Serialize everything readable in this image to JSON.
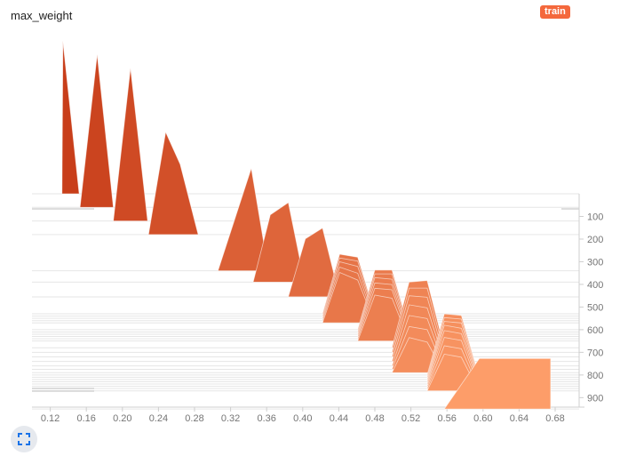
{
  "header": {
    "title": "max_weight",
    "run_label": "train"
  },
  "controls": {
    "fit_icon": "fit-to-screen-icon"
  },
  "colors": {
    "early": "#c83e1a",
    "late": "#ffa06c",
    "badge": "#f4683c",
    "grid": "#e6e6e6"
  },
  "chart_data": {
    "type": "histogram-offset",
    "title": "max_weight",
    "run": "train",
    "xlim": [
      0.1,
      0.69
    ],
    "x_ticks": [
      "0.12",
      "0.16",
      "0.20",
      "0.24",
      "0.28",
      "0.32",
      "0.36",
      "0.40",
      "0.44",
      "0.48",
      "0.52",
      "0.56",
      "0.60",
      "0.64",
      "0.68"
    ],
    "ylim": [
      0,
      985
    ],
    "y_ticks": [
      "100",
      "200",
      "300",
      "400",
      "500",
      "600",
      "700",
      "800",
      "900"
    ],
    "histograms": [
      {
        "step": 0,
        "x": [
          0.133,
          0.134,
          0.152
        ],
        "h": [
          0,
          1.0,
          0
        ]
      },
      {
        "step": 60,
        "x": [
          0.153,
          0.172,
          0.19
        ],
        "h": [
          0,
          1.0,
          0
        ]
      },
      {
        "step": 120,
        "x": [
          0.19,
          0.209,
          0.228
        ],
        "h": [
          0,
          1.0,
          0
        ]
      },
      {
        "step": 180,
        "x": [
          0.229,
          0.248,
          0.264,
          0.284
        ],
        "h": [
          0,
          0.67,
          0.46,
          0
        ]
      },
      {
        "step": 340,
        "x": [
          0.306,
          0.343,
          0.362
        ],
        "h": [
          0,
          0.67,
          0
        ]
      },
      {
        "step": 390,
        "x": [
          0.345,
          0.364,
          0.384,
          0.402
        ],
        "h": [
          0,
          0.44,
          0.52,
          0
        ]
      },
      {
        "step": 455,
        "x": [
          0.384,
          0.403,
          0.422,
          0.441
        ],
        "h": [
          0,
          0.38,
          0.45,
          0
        ]
      },
      {
        "step": 530,
        "x": [
          0.422,
          0.441,
          0.461,
          0.48
        ],
        "h": [
          0,
          0.39,
          0.37,
          0
        ]
      },
      {
        "step": 540,
        "x": [
          0.422,
          0.441,
          0.461,
          0.48
        ],
        "h": [
          0,
          0.38,
          0.36,
          0
        ]
      },
      {
        "step": 550,
        "x": [
          0.422,
          0.441,
          0.461,
          0.48
        ],
        "h": [
          0,
          0.37,
          0.34,
          0
        ]
      },
      {
        "step": 560,
        "x": [
          0.422,
          0.441,
          0.461,
          0.48
        ],
        "h": [
          0,
          0.35,
          0.31,
          0
        ]
      },
      {
        "step": 570,
        "x": [
          0.422,
          0.441,
          0.461,
          0.48
        ],
        "h": [
          0,
          0.33,
          0.28,
          0
        ]
      },
      {
        "step": 600,
        "x": [
          0.461,
          0.48,
          0.499,
          0.518
        ],
        "h": [
          0,
          0.39,
          0.39,
          0
        ]
      },
      {
        "step": 610,
        "x": [
          0.461,
          0.48,
          0.499,
          0.518
        ],
        "h": [
          0,
          0.38,
          0.38,
          0
        ]
      },
      {
        "step": 620,
        "x": [
          0.461,
          0.48,
          0.499,
          0.518
        ],
        "h": [
          0,
          0.37,
          0.36,
          0
        ]
      },
      {
        "step": 630,
        "x": [
          0.461,
          0.48,
          0.499,
          0.518
        ],
        "h": [
          0,
          0.35,
          0.34,
          0
        ]
      },
      {
        "step": 640,
        "x": [
          0.461,
          0.48,
          0.499,
          0.518
        ],
        "h": [
          0,
          0.33,
          0.32,
          0
        ]
      },
      {
        "step": 650,
        "x": [
          0.461,
          0.48,
          0.499,
          0.518
        ],
        "h": [
          0,
          0.3,
          0.28,
          0
        ]
      },
      {
        "step": 680,
        "x": [
          0.499,
          0.518,
          0.538,
          0.557
        ],
        "h": [
          0,
          0.43,
          0.44,
          0
        ]
      },
      {
        "step": 700,
        "x": [
          0.499,
          0.518,
          0.538,
          0.557
        ],
        "h": [
          0,
          0.42,
          0.42,
          0
        ]
      },
      {
        "step": 720,
        "x": [
          0.499,
          0.518,
          0.538,
          0.557
        ],
        "h": [
          0,
          0.4,
          0.39,
          0
        ]
      },
      {
        "step": 740,
        "x": [
          0.499,
          0.518,
          0.538,
          0.557
        ],
        "h": [
          0,
          0.37,
          0.35,
          0
        ]
      },
      {
        "step": 760,
        "x": [
          0.499,
          0.518,
          0.538,
          0.557
        ],
        "h": [
          0,
          0.33,
          0.31,
          0
        ]
      },
      {
        "step": 775,
        "x": [
          0.499,
          0.518,
          0.538,
          0.557
        ],
        "h": [
          0,
          0.28,
          0.26,
          0
        ]
      },
      {
        "step": 790,
        "x": [
          0.499,
          0.518,
          0.538,
          0.557
        ],
        "h": [
          0,
          0.23,
          0.2,
          0
        ]
      },
      {
        "step": 800,
        "x": [
          0.538,
          0.557,
          0.576,
          0.595
        ],
        "h": [
          0,
          0.4,
          0.39,
          0
        ]
      },
      {
        "step": 810,
        "x": [
          0.538,
          0.557,
          0.576,
          0.595
        ],
        "h": [
          0,
          0.39,
          0.38,
          0
        ]
      },
      {
        "step": 820,
        "x": [
          0.538,
          0.557,
          0.576,
          0.595
        ],
        "h": [
          0,
          0.38,
          0.37,
          0
        ]
      },
      {
        "step": 830,
        "x": [
          0.538,
          0.557,
          0.576,
          0.595
        ],
        "h": [
          0,
          0.37,
          0.35,
          0
        ]
      },
      {
        "step": 840,
        "x": [
          0.538,
          0.557,
          0.576,
          0.595
        ],
        "h": [
          0,
          0.35,
          0.33,
          0
        ]
      },
      {
        "step": 850,
        "x": [
          0.538,
          0.557,
          0.576,
          0.595
        ],
        "h": [
          0,
          0.32,
          0.3,
          0
        ]
      },
      {
        "step": 860,
        "x": [
          0.538,
          0.557,
          0.576,
          0.595
        ],
        "h": [
          0,
          0.28,
          0.26,
          0
        ]
      },
      {
        "step": 870,
        "x": [
          0.538,
          0.557,
          0.576,
          0.595
        ],
        "h": [
          0,
          0.24,
          0.22,
          0
        ]
      },
      {
        "step": 950,
        "x": [
          0.557,
          0.596,
          0.675,
          0.675
        ],
        "h": [
          0,
          0.33,
          0.33,
          0
        ]
      }
    ]
  }
}
